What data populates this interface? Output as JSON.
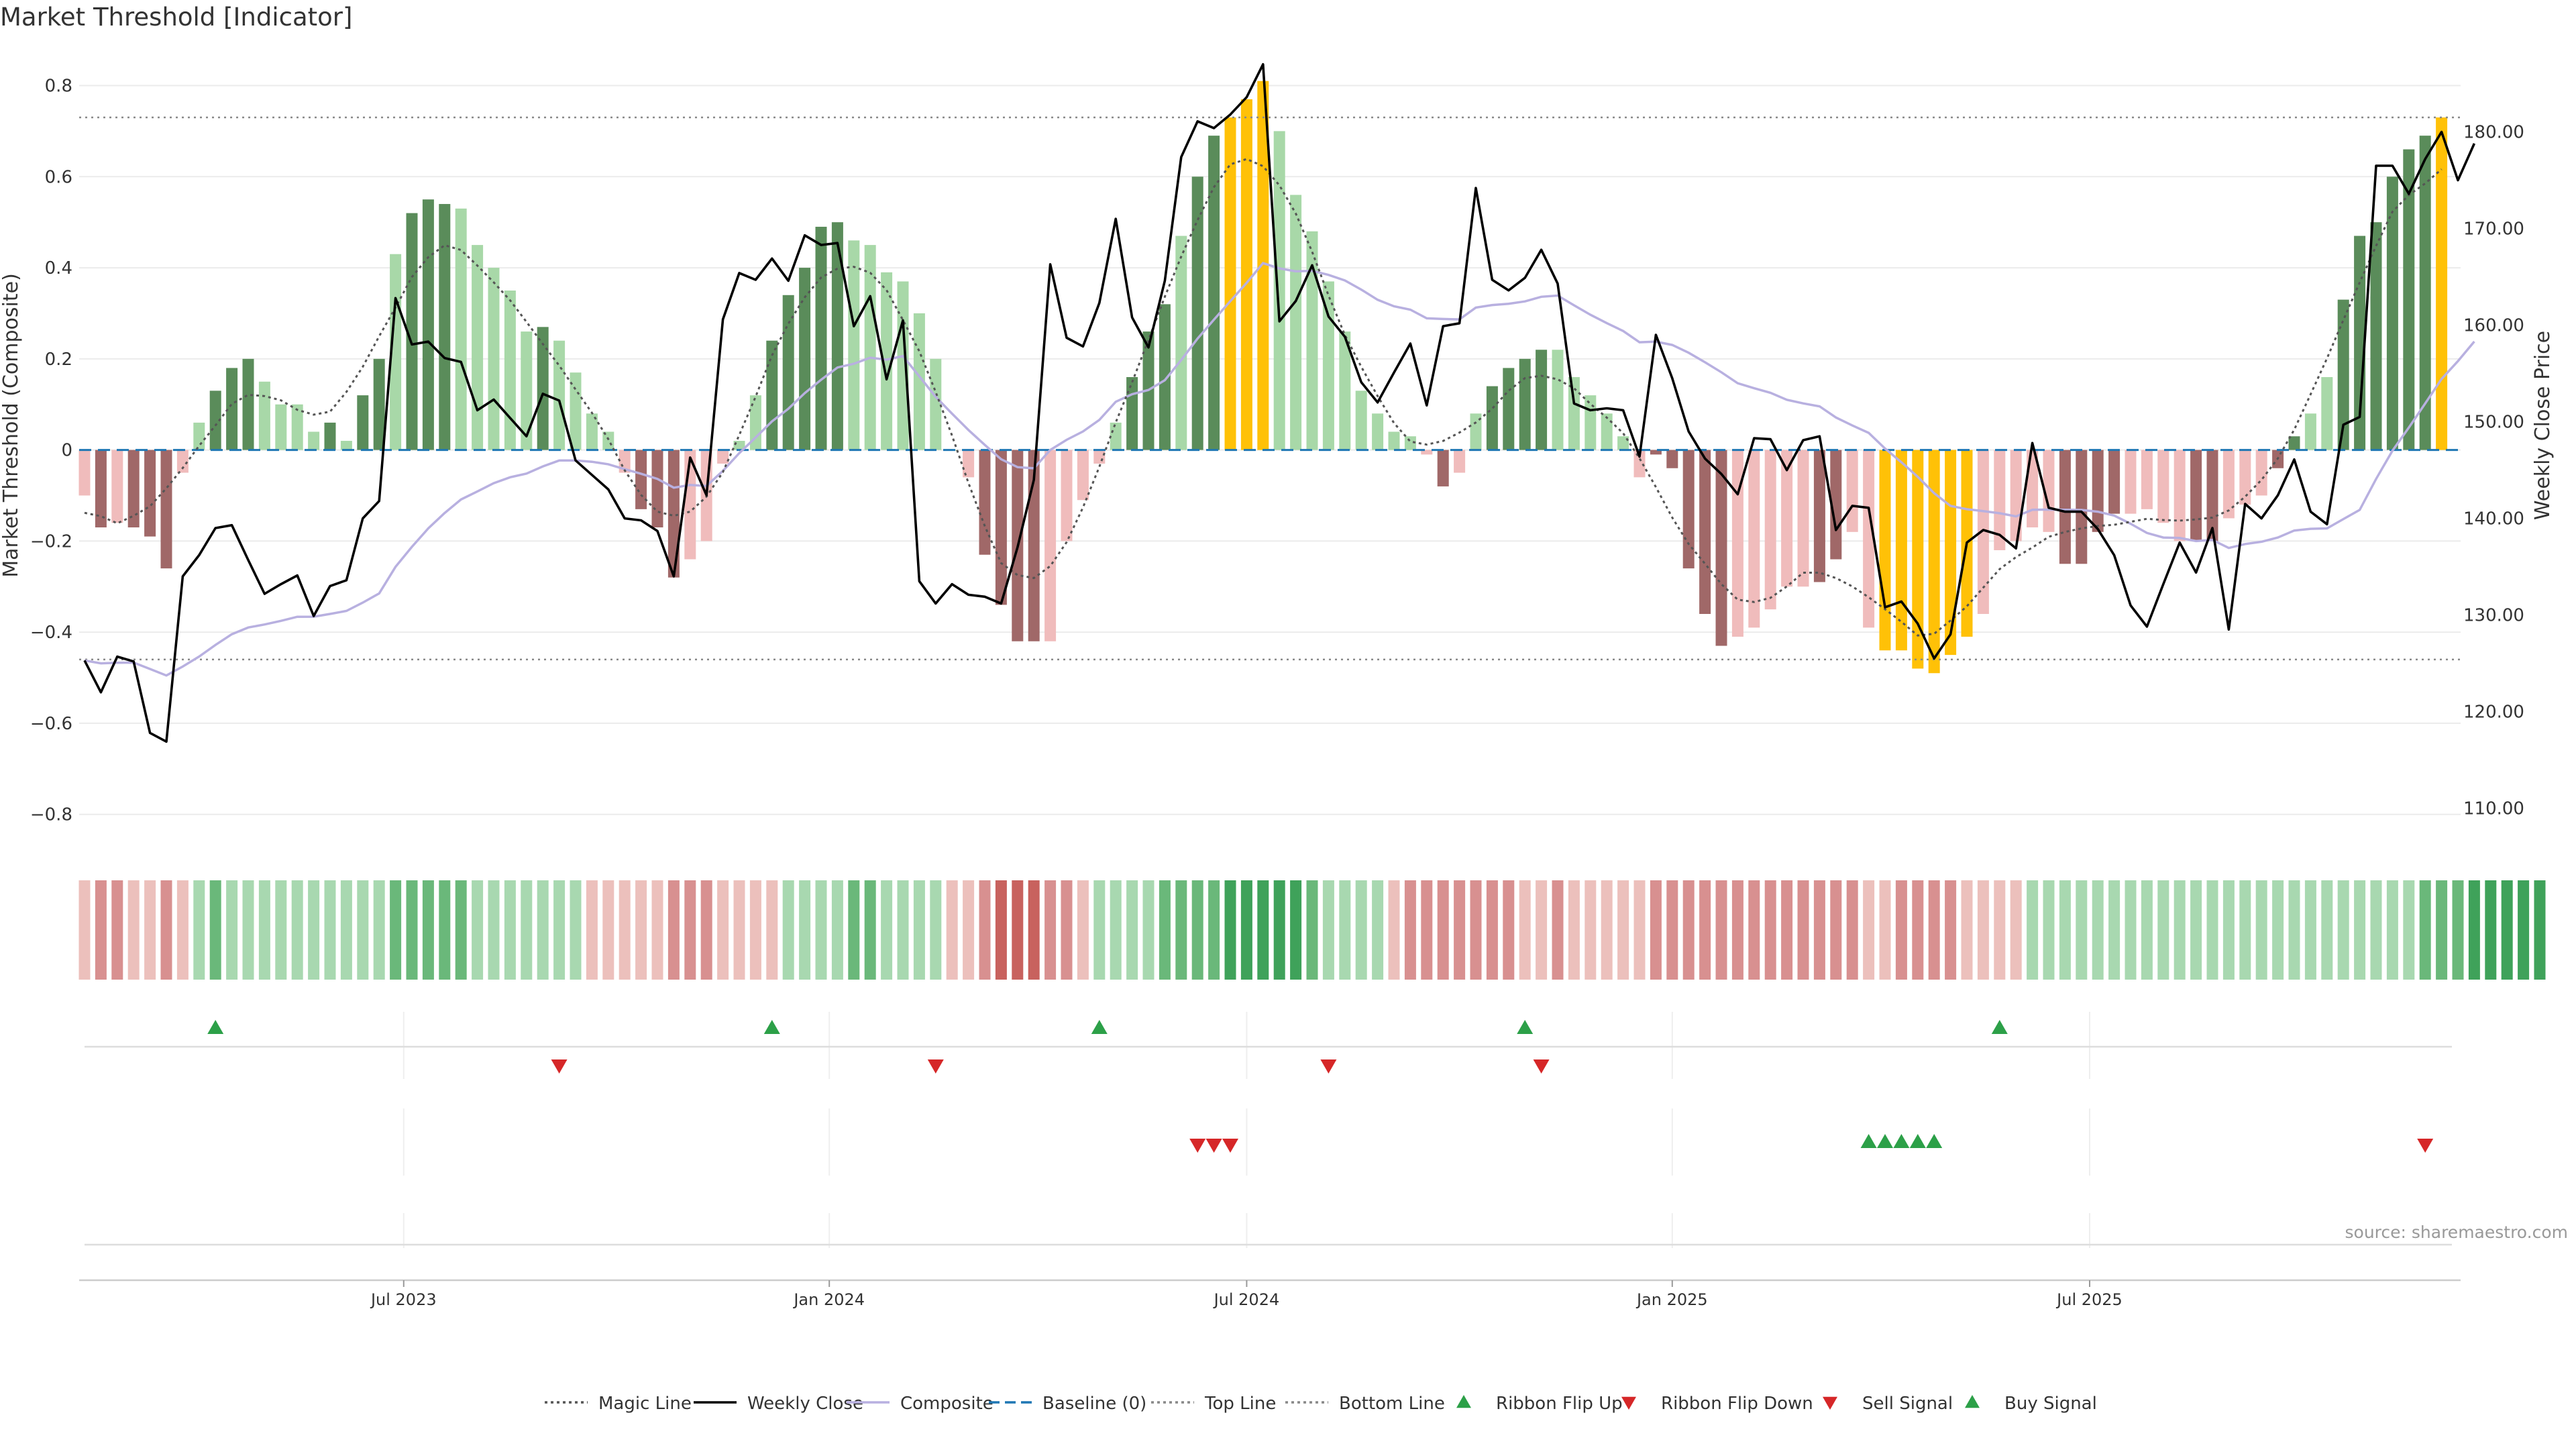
{
  "title": "Market Threshold [Indicator]",
  "source": "source: sharemaestro.com",
  "y_left_label": "Market Threshold (Composite)",
  "y_right_label": "Weekly Close Price",
  "colors": {
    "bull_dark": "#5a8c5a",
    "bull_light": "#a8d8a8",
    "bear_dark": "#a06868",
    "bear_light": "#f0bcbc",
    "extreme": "#ffc107",
    "close_line": "#000000",
    "composite_line": "#b8b0e0",
    "magic_line": "#555555",
    "baseline": "#1f77b4",
    "threshold_line": "#888888",
    "flip_up": "#2ca048",
    "flip_down": "#d62728"
  },
  "legend": [
    {
      "label": "Magic Line",
      "kind": "dotted-line",
      "color": "#555555"
    },
    {
      "label": "Weekly Close",
      "kind": "solid-line",
      "color": "#000000"
    },
    {
      "label": "Composite",
      "kind": "solid-line",
      "color": "#b8b0e0"
    },
    {
      "label": "Baseline (0)",
      "kind": "dashed-line",
      "color": "#1f77b4"
    },
    {
      "label": "Top Line",
      "kind": "dotted-line",
      "color": "#888888"
    },
    {
      "label": "Bottom Line",
      "kind": "dotted-line",
      "color": "#888888"
    },
    {
      "label": "Ribbon Flip Up",
      "kind": "up-triangle",
      "color": "#2ca048"
    },
    {
      "label": "Ribbon Flip Down",
      "kind": "down-triangle",
      "color": "#d62728"
    },
    {
      "label": "Sell Signal",
      "kind": "down-triangle",
      "color": "#d62728"
    },
    {
      "label": "Buy Signal",
      "kind": "up-triangle",
      "color": "#2ca048"
    }
  ],
  "chart_data": {
    "type": "bar",
    "n_weeks": 145,
    "x_ticks": [
      {
        "label": "Jul 2023",
        "index": 19.5
      },
      {
        "label": "Jan 2024",
        "index": 45.5
      },
      {
        "label": "Jul 2024",
        "index": 71.0
      },
      {
        "label": "Jan 2025",
        "index": 97.0
      },
      {
        "label": "Jul 2025",
        "index": 122.5
      }
    ],
    "y_left": {
      "min": -0.88,
      "max": 0.87,
      "ticks": [
        0.8,
        0.6,
        0.4,
        0.2,
        0,
        -0.2,
        -0.4,
        -0.6,
        -0.8
      ]
    },
    "y_right": {
      "min": 105.6,
      "max": 188.1,
      "ticks": [
        180,
        170,
        160,
        150,
        140,
        130,
        120,
        110
      ]
    },
    "top_line": 0.73,
    "bottom_line": -0.46,
    "baseline": 0,
    "composite_bars": [
      -0.1,
      -0.17,
      -0.16,
      -0.17,
      -0.19,
      -0.26,
      -0.05,
      0.06,
      0.13,
      0.18,
      0.2,
      0.15,
      0.1,
      0.1,
      0.04,
      0.06,
      0.02,
      0.12,
      0.2,
      0.43,
      0.52,
      0.55,
      0.54,
      0.53,
      0.45,
      0.4,
      0.35,
      0.26,
      0.27,
      0.24,
      0.17,
      0.08,
      0.04,
      -0.05,
      -0.13,
      -0.17,
      -0.28,
      -0.24,
      -0.2,
      -0.03,
      0.02,
      0.12,
      0.24,
      0.34,
      0.4,
      0.49,
      0.5,
      0.46,
      0.45,
      0.39,
      0.37,
      0.3,
      0.2,
      0.0,
      -0.06,
      -0.23,
      -0.34,
      -0.42,
      -0.42,
      -0.42,
      -0.2,
      -0.11,
      -0.03,
      0.06,
      0.16,
      0.26,
      0.32,
      0.47,
      0.6,
      0.69,
      0.73,
      0.77,
      0.81,
      0.7,
      0.56,
      0.48,
      0.37,
      0.26,
      0.13,
      0.08,
      0.04,
      0.03,
      -0.01,
      -0.08,
      -0.05,
      0.08,
      0.14,
      0.18,
      0.2,
      0.22,
      0.22,
      0.16,
      0.12,
      0.08,
      0.03,
      -0.06,
      -0.01,
      -0.04,
      -0.26,
      -0.36,
      -0.43,
      -0.41,
      -0.39,
      -0.35,
      -0.3,
      -0.3,
      -0.29,
      -0.24,
      -0.18,
      -0.39,
      -0.44,
      -0.44,
      -0.48,
      -0.49,
      -0.45,
      -0.41,
      -0.36,
      -0.22,
      -0.2,
      -0.17,
      -0.18,
      -0.25,
      -0.25,
      -0.18,
      -0.14,
      -0.14,
      -0.13,
      -0.16,
      -0.2,
      -0.2,
      -0.2,
      -0.15,
      -0.12,
      -0.1,
      -0.04,
      0.03,
      0.08,
      0.16,
      0.33,
      0.47,
      0.5,
      0.6,
      0.66,
      0.69,
      0.73
    ],
    "bar_styles": [
      "l",
      "d",
      "l",
      "d",
      "d",
      "d",
      "l",
      "l",
      "d",
      "d",
      "d",
      "l",
      "l",
      "l",
      "l",
      "d",
      "l",
      "d",
      "d",
      "l",
      "d",
      "d",
      "d",
      "l",
      "l",
      "l",
      "l",
      "l",
      "d",
      "l",
      "l",
      "l",
      "l",
      "l",
      "d",
      "d",
      "d",
      "l",
      "l",
      "l",
      "l",
      "l",
      "d",
      "d",
      "d",
      "d",
      "d",
      "l",
      "l",
      "l",
      "l",
      "l",
      "l",
      "l",
      "l",
      "d",
      "d",
      "d",
      "d",
      "l",
      "l",
      "l",
      "l",
      "l",
      "d",
      "d",
      "d",
      "l",
      "d",
      "d",
      "e",
      "e",
      "e",
      "l",
      "l",
      "l",
      "l",
      "l",
      "l",
      "l",
      "l",
      "l",
      "l",
      "d",
      "l",
      "l",
      "d",
      "d",
      "d",
      "d",
      "l",
      "l",
      "l",
      "l",
      "l",
      "l",
      "d",
      "d",
      "d",
      "d",
      "d",
      "l",
      "l",
      "l",
      "l",
      "l",
      "d",
      "d",
      "l",
      "l",
      "e",
      "e",
      "e",
      "e",
      "e",
      "e",
      "l",
      "l",
      "l",
      "l",
      "l",
      "d",
      "d",
      "d",
      "d",
      "l",
      "l",
      "l",
      "l",
      "d",
      "d",
      "l",
      "l",
      "l",
      "d",
      "d",
      "l",
      "l",
      "d",
      "d",
      "d",
      "d",
      "d",
      "d",
      "e"
    ],
    "weekly_close": [
      125.3,
      122.0,
      125.7,
      125.2,
      117.8,
      116.9,
      134.0,
      136.2,
      139.0,
      139.3,
      135.7,
      132.2,
      133.2,
      134.1,
      129.9,
      133.0,
      133.6,
      140.0,
      141.8,
      162.8,
      158.0,
      158.3,
      156.6,
      156.2,
      151.2,
      152.3,
      150.4,
      148.5,
      152.9,
      152.2,
      146.0,
      144.5,
      143.0,
      140.0,
      139.8,
      138.7,
      134.0,
      146.3,
      142.4,
      160.6,
      165.4,
      164.7,
      166.9,
      164.6,
      169.3,
      168.3,
      168.5,
      159.9,
      163.0,
      154.4,
      160.5,
      133.5,
      131.2,
      133.2,
      132.1,
      131.9,
      131.2,
      137.0,
      144.0,
      166.3,
      158.7,
      157.8,
      162.3,
      171.0,
      160.8,
      157.7,
      164.6,
      177.4,
      181.1,
      180.4,
      181.8,
      183.6,
      187.0,
      160.4,
      162.5,
      166.2,
      160.9,
      158.8,
      154.1,
      152.0,
      155.1,
      158.1,
      151.7,
      159.9,
      160.2,
      174.2,
      164.7,
      163.6,
      164.9,
      167.8,
      164.3,
      151.9,
      151.2,
      151.4,
      151.2,
      146.4,
      159.0,
      154.5,
      149.0,
      146.2,
      144.6,
      142.5,
      148.3,
      148.2,
      145.0,
      148.1,
      148.5,
      138.8,
      141.3,
      141.1,
      130.8,
      131.4,
      129.1,
      125.5,
      128.0,
      137.5,
      138.8,
      138.3,
      136.9,
      147.8,
      141.1,
      140.7,
      140.7,
      138.9,
      136.2,
      131.0,
      128.8,
      133.2,
      137.5,
      134.4,
      139.0,
      128.5,
      141.5,
      140.0,
      142.4,
      146.1,
      140.7,
      139.4,
      149.7,
      150.5,
      176.5,
      176.5,
      173.6,
      177.2,
      180.0,
      175.0,
      178.8
    ]
  },
  "ribbon": {
    "cells": [
      "rl",
      "rm",
      "rm",
      "rl",
      "rl",
      "rm",
      "rl",
      "gl",
      "gm",
      "gl",
      "gl",
      "gl",
      "gl",
      "gl",
      "gl",
      "gl",
      "gl",
      "gl",
      "gl",
      "gm",
      "gm",
      "gm",
      "gm",
      "gm",
      "gl",
      "gl",
      "gl",
      "gl",
      "gl",
      "gl",
      "gl",
      "rl",
      "rl",
      "rl",
      "rl",
      "rl",
      "rm",
      "rm",
      "rm",
      "rl",
      "rl",
      "rl",
      "rl",
      "gl",
      "gl",
      "gl",
      "gl",
      "gm",
      "gm",
      "gl",
      "gl",
      "gl",
      "gl",
      "rl",
      "rl",
      "rm",
      "rd",
      "rd",
      "rd",
      "rm",
      "rm",
      "rl",
      "gl",
      "gl",
      "gl",
      "gl",
      "gm",
      "gm",
      "gm",
      "gm",
      "gd",
      "gd",
      "gd",
      "gd",
      "gd",
      "gm",
      "gl",
      "gl",
      "gl",
      "gl",
      "rl",
      "rm",
      "rm",
      "rm",
      "rm",
      "rm",
      "rm",
      "rm",
      "rl",
      "rl",
      "rm",
      "rl",
      "rl",
      "rl",
      "rl",
      "rl",
      "rm",
      "rm",
      "rm",
      "rm",
      "rm",
      "rm",
      "rm",
      "rm",
      "rm",
      "rm",
      "rm",
      "rm",
      "rm",
      "rl",
      "rl",
      "rm",
      "rm",
      "rm",
      "rm",
      "rl",
      "rl",
      "rl",
      "rl",
      "gl",
      "gl",
      "gl",
      "gl",
      "gl",
      "gl",
      "gl",
      "gl",
      "gl",
      "gl",
      "gl",
      "gl",
      "gl",
      "gl",
      "gl",
      "gl",
      "gl",
      "gl",
      "gl",
      "gl",
      "gl",
      "gl",
      "gl",
      "gl",
      "gm",
      "gm",
      "gm",
      "gd",
      "gd",
      "gd",
      "gd",
      "gd"
    ],
    "palette": {
      "gd": "#3fa25a",
      "gm": "#6ab87a",
      "gl": "#a8d8b0",
      "rd": "#c8625e",
      "rm": "#d89090",
      "rl": "#ecc0bc"
    }
  },
  "signals": {
    "flip_up": [
      8,
      42,
      62,
      88,
      117
    ],
    "flip_down": [
      29,
      52,
      76,
      89
    ],
    "sell": [
      68,
      69,
      70,
      143
    ],
    "buy": [
      109,
      110,
      111,
      112,
      113
    ]
  }
}
